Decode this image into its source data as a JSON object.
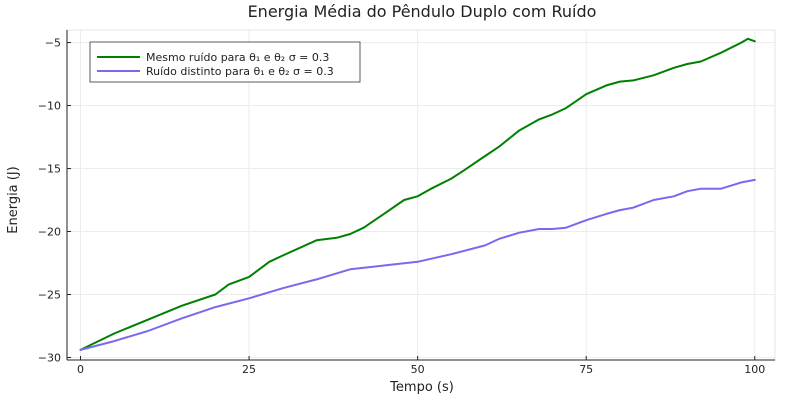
{
  "chart_data": {
    "type": "line",
    "title": "Energia Média do Pêndulo Duplo com Ruído",
    "xlabel": "Tempo (s)",
    "ylabel": "Energia (J)",
    "xlim": [
      -2,
      103
    ],
    "ylim": [
      -30.2,
      -4.0
    ],
    "xticks": [
      0,
      25,
      50,
      75,
      100
    ],
    "xtick_labels": [
      "0",
      "25",
      "50",
      "75",
      "100"
    ],
    "yticks": [
      -30,
      -25,
      -20,
      -15,
      -10,
      -5
    ],
    "ytick_labels": [
      "−30",
      "−25",
      "−20",
      "−15",
      "−10",
      "−5"
    ],
    "grid": true,
    "legend_position": "top-left",
    "series": [
      {
        "name": "Mesmo ruído para θ₁ e θ₂ σ = 0.3",
        "color": "#008000",
        "x": [
          0,
          5,
          10,
          15,
          20,
          22,
          25,
          28,
          30,
          35,
          38,
          40,
          42,
          45,
          48,
          50,
          52,
          55,
          57,
          60,
          62,
          65,
          68,
          70,
          72,
          75,
          78,
          80,
          82,
          85,
          88,
          90,
          92,
          95,
          98,
          99,
          100
        ],
        "y": [
          -29.4,
          -28.1,
          -27.0,
          -25.9,
          -25.0,
          -24.2,
          -23.6,
          -22.4,
          -21.9,
          -20.7,
          -20.5,
          -20.2,
          -19.7,
          -18.6,
          -17.5,
          -17.2,
          -16.6,
          -15.8,
          -15.1,
          -14.0,
          -13.3,
          -12.0,
          -11.1,
          -10.7,
          -10.2,
          -9.1,
          -8.4,
          -8.1,
          -8.0,
          -7.6,
          -7.0,
          -6.7,
          -6.5,
          -5.8,
          -5.0,
          -4.7,
          -4.9
        ]
      },
      {
        "name": "Ruído distinto para θ₁ e θ₂ σ = 0.3",
        "color": "#7b68ee",
        "x": [
          0,
          5,
          10,
          15,
          20,
          25,
          30,
          35,
          40,
          45,
          50,
          55,
          60,
          62,
          65,
          68,
          70,
          72,
          75,
          78,
          80,
          82,
          85,
          88,
          90,
          92,
          95,
          98,
          100
        ],
        "y": [
          -29.4,
          -28.7,
          -27.9,
          -26.9,
          -26.0,
          -25.3,
          -24.5,
          -23.8,
          -23.0,
          -22.7,
          -22.4,
          -21.8,
          -21.1,
          -20.6,
          -20.1,
          -19.8,
          -19.8,
          -19.7,
          -19.1,
          -18.6,
          -18.3,
          -18.1,
          -17.5,
          -17.2,
          -16.8,
          -16.6,
          -16.6,
          -16.1,
          -15.9
        ]
      }
    ]
  }
}
